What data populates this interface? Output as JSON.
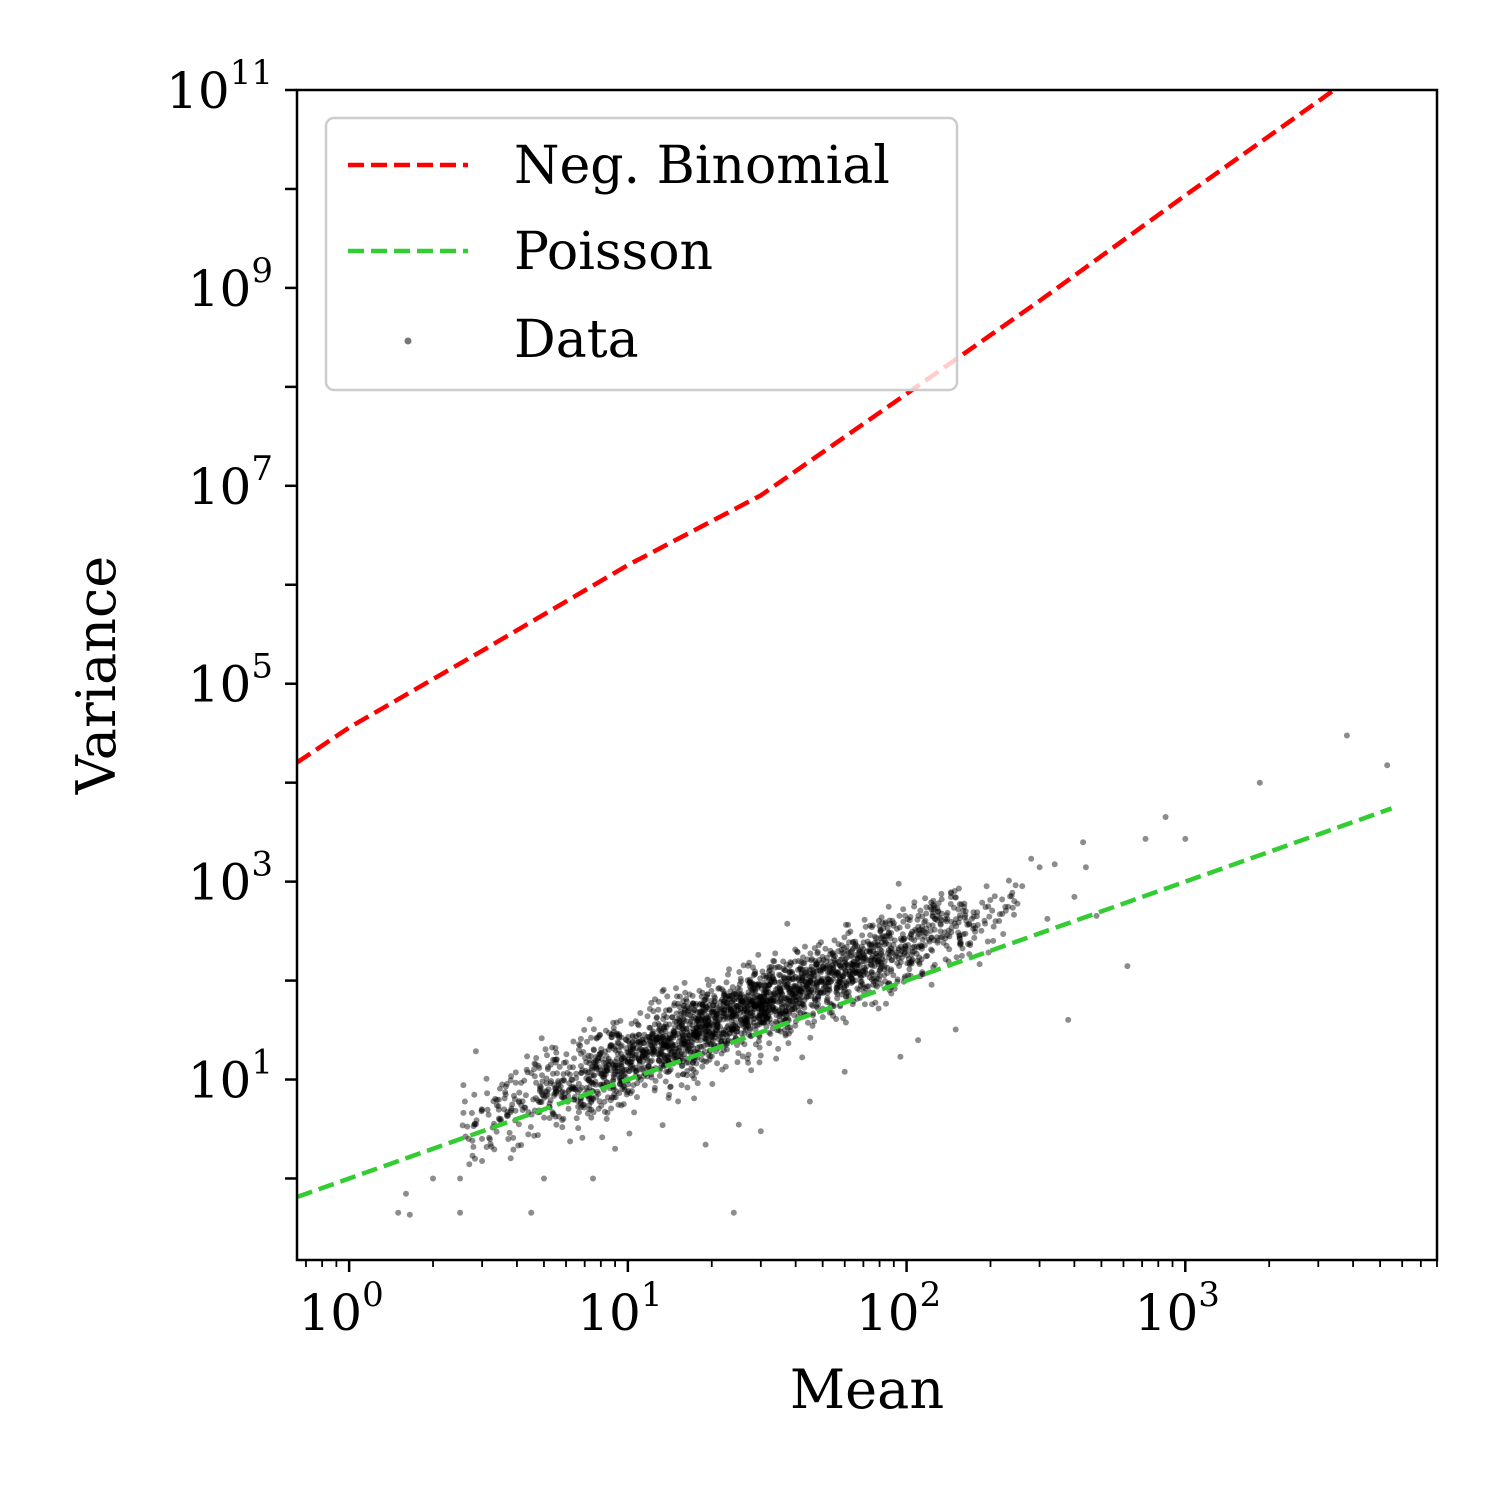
{
  "chart_data": {
    "type": "scatter",
    "xlabel": "Mean",
    "ylabel": "Variance",
    "xscale": "log",
    "yscale": "log",
    "xlim": [
      0.65,
      8000
    ],
    "ylim": [
      0.15,
      100000000000
    ],
    "x_ticks": [
      {
        "value": 1,
        "base": "10",
        "exp": "0"
      },
      {
        "value": 10,
        "base": "10",
        "exp": "1"
      },
      {
        "value": 100,
        "base": "10",
        "exp": "2"
      },
      {
        "value": 1000,
        "base": "10",
        "exp": "3"
      }
    ],
    "y_ticks": [
      {
        "value": 10,
        "base": "10",
        "exp": "1"
      },
      {
        "value": 1000,
        "base": "10",
        "exp": "3"
      },
      {
        "value": 100000,
        "base": "10",
        "exp": "5"
      },
      {
        "value": 10000000,
        "base": "10",
        "exp": "7"
      },
      {
        "value": 1000000000,
        "base": "10",
        "exp": "9"
      },
      {
        "value": 100000000000,
        "base": "10",
        "exp": "11"
      }
    ],
    "legend": {
      "position": "upper left",
      "entries": [
        {
          "label": "Neg. Binomial",
          "kind": "dashed-line",
          "color": "#ff0000"
        },
        {
          "label": "Poisson",
          "kind": "dashed-line",
          "color": "#33cc33"
        },
        {
          "label": "Data",
          "kind": "marker",
          "color": "#555555"
        }
      ]
    },
    "series": [
      {
        "name": "Neg. Binomial",
        "type": "line",
        "style": "dashed",
        "color": "#ff0000",
        "x": [
          0.65,
          1,
          3,
          10,
          30,
          100,
          300,
          1000,
          3000,
          5500
        ],
        "y": [
          16000,
          36000,
          215000,
          1580000,
          8000000,
          85000000,
          740000000,
          8600000000,
          77000000000,
          260000000000
        ]
      },
      {
        "name": "Poisson",
        "type": "line",
        "style": "dashed",
        "color": "#33cc33",
        "x": [
          0.65,
          5500
        ],
        "y": [
          0.65,
          5500
        ]
      },
      {
        "name": "Data",
        "type": "scatter",
        "color": "#000000",
        "opacity": 0.45,
        "trend": {
          "x_range": [
            2.5,
            250
          ],
          "log_slope": 1.15,
          "log_offset": 0.05,
          "log_spread": 0.2
        },
        "points": [
          {
            "x": 1.5,
            "y": 0.45
          },
          {
            "x": 1.6,
            "y": 0.7
          },
          {
            "x": 1.65,
            "y": 0.43
          },
          {
            "x": 2.0,
            "y": 1.0
          },
          {
            "x": 2.5,
            "y": 1.0
          },
          {
            "x": 2.5,
            "y": 0.45
          },
          {
            "x": 3.0,
            "y": 1.5
          },
          {
            "x": 3.2,
            "y": 2.5
          },
          {
            "x": 3.8,
            "y": 1.6
          },
          {
            "x": 4.5,
            "y": 0.45
          },
          {
            "x": 5.0,
            "y": 1.0
          },
          {
            "x": 7.5,
            "y": 1.0
          },
          {
            "x": 9.0,
            "y": 2.0
          },
          {
            "x": 14,
            "y": 6.5
          },
          {
            "x": 19,
            "y": 2.2
          },
          {
            "x": 24,
            "y": 0.45
          },
          {
            "x": 25,
            "y": 3.5
          },
          {
            "x": 30,
            "y": 3.0
          },
          {
            "x": 45,
            "y": 6.0
          },
          {
            "x": 60,
            "y": 12
          },
          {
            "x": 95,
            "y": 17
          },
          {
            "x": 110,
            "y": 25
          },
          {
            "x": 150,
            "y": 32
          },
          {
            "x": 175,
            "y": 270
          },
          {
            "x": 215,
            "y": 400
          },
          {
            "x": 250,
            "y": 600
          },
          {
            "x": 260,
            "y": 900
          },
          {
            "x": 280,
            "y": 1700
          },
          {
            "x": 300,
            "y": 1400
          },
          {
            "x": 320,
            "y": 420
          },
          {
            "x": 340,
            "y": 1500
          },
          {
            "x": 380,
            "y": 40
          },
          {
            "x": 400,
            "y": 700
          },
          {
            "x": 430,
            "y": 2500
          },
          {
            "x": 440,
            "y": 1400
          },
          {
            "x": 480,
            "y": 450
          },
          {
            "x": 620,
            "y": 140
          },
          {
            "x": 720,
            "y": 2700
          },
          {
            "x": 850,
            "y": 4500
          },
          {
            "x": 1000,
            "y": 2700
          },
          {
            "x": 1850,
            "y": 10000
          },
          {
            "x": 3800,
            "y": 30000
          },
          {
            "x": 5300,
            "y": 15000
          }
        ]
      }
    ]
  }
}
